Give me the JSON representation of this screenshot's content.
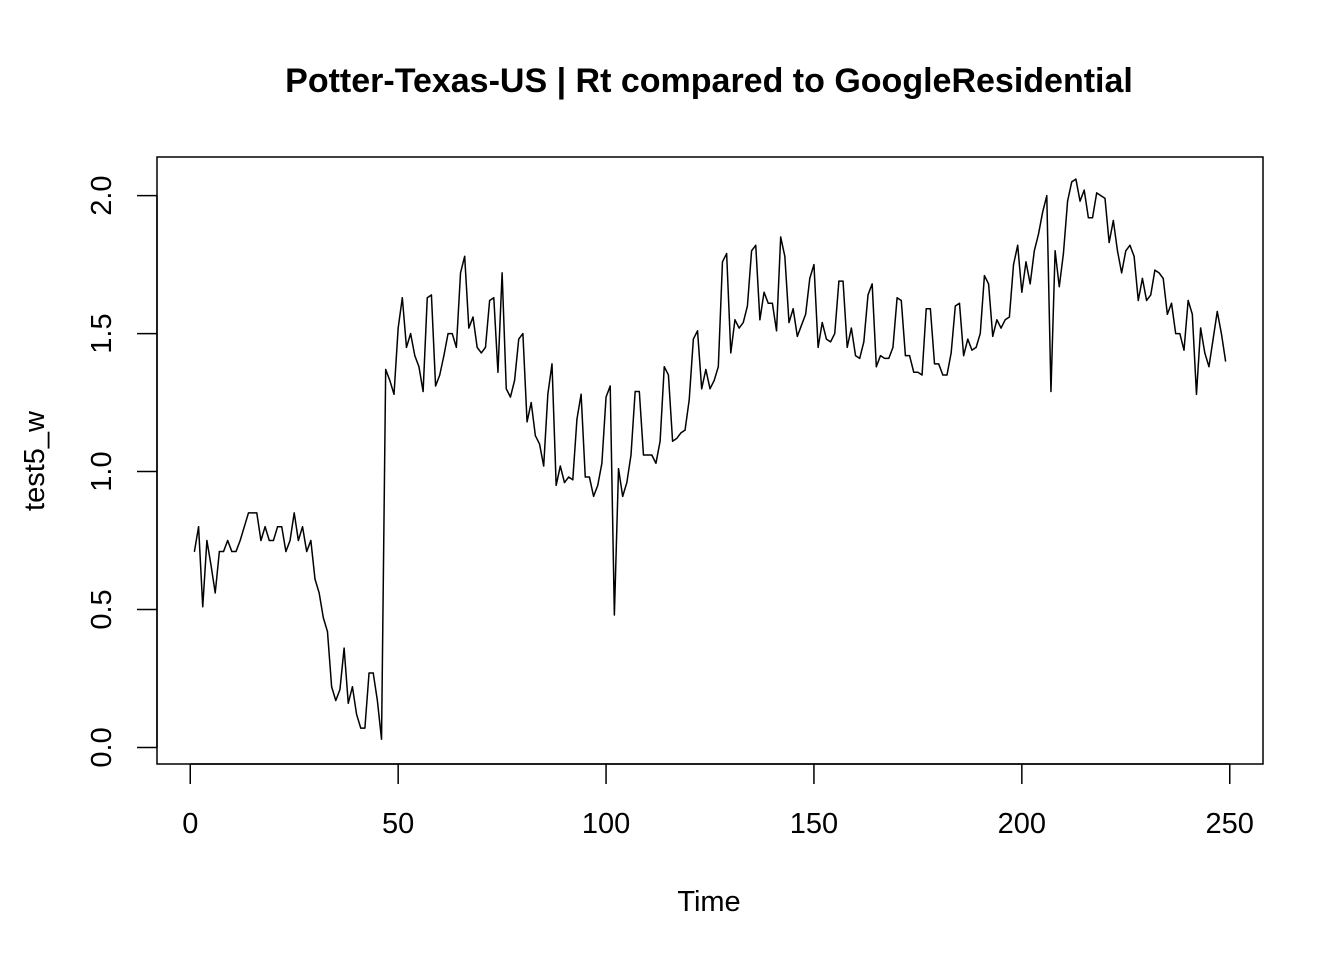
{
  "chart_data": {
    "type": "line",
    "title": "Potter-Texas-US | Rt compared to GoogleResidential",
    "xlabel": "Time",
    "ylabel": "test5_w",
    "xlim": [
      -8,
      258
    ],
    "ylim": [
      -0.06,
      2.14
    ],
    "xticks": [
      0,
      50,
      100,
      150,
      200,
      250
    ],
    "yticks": [
      0.0,
      0.5,
      1.0,
      1.5,
      2.0
    ],
    "xtick_labels": [
      "0",
      "50",
      "100",
      "150",
      "200",
      "250"
    ],
    "ytick_labels": [
      "0.0",
      "0.5",
      "1.0",
      "1.5",
      "2.0"
    ],
    "grid": false,
    "legend": "none",
    "line_color": "#000000",
    "series": [
      {
        "x_start": 1,
        "values": [
          0.71,
          0.8,
          0.51,
          0.75,
          0.66,
          0.56,
          0.71,
          0.71,
          0.75,
          0.71,
          0.71,
          0.75,
          0.8,
          0.85,
          0.85,
          0.85,
          0.75,
          0.8,
          0.75,
          0.75,
          0.8,
          0.8,
          0.71,
          0.75,
          0.85,
          0.75,
          0.8,
          0.71,
          0.75,
          0.61,
          0.56,
          0.47,
          0.42,
          0.22,
          0.17,
          0.21,
          0.36,
          0.16,
          0.22,
          0.12,
          0.07,
          0.07,
          0.27,
          0.27,
          0.17,
          0.03,
          1.37,
          1.33,
          1.28,
          1.52,
          1.63,
          1.45,
          1.5,
          1.42,
          1.38,
          1.29,
          1.63,
          1.64,
          1.31,
          1.35,
          1.42,
          1.5,
          1.5,
          1.45,
          1.72,
          1.78,
          1.52,
          1.56,
          1.45,
          1.43,
          1.45,
          1.62,
          1.63,
          1.36,
          1.72,
          1.3,
          1.27,
          1.33,
          1.48,
          1.5,
          1.18,
          1.25,
          1.13,
          1.1,
          1.02,
          1.28,
          1.39,
          0.95,
          1.02,
          0.96,
          0.98,
          0.97,
          1.19,
          1.28,
          0.98,
          0.98,
          0.91,
          0.95,
          1.03,
          1.27,
          1.31,
          0.48,
          1.01,
          0.91,
          0.96,
          1.06,
          1.29,
          1.29,
          1.06,
          1.06,
          1.06,
          1.03,
          1.11,
          1.38,
          1.35,
          1.11,
          1.12,
          1.14,
          1.15,
          1.26,
          1.48,
          1.51,
          1.3,
          1.37,
          1.3,
          1.33,
          1.38,
          1.76,
          1.79,
          1.43,
          1.55,
          1.52,
          1.54,
          1.6,
          1.8,
          1.82,
          1.55,
          1.65,
          1.61,
          1.61,
          1.51,
          1.85,
          1.78,
          1.54,
          1.59,
          1.49,
          1.53,
          1.57,
          1.7,
          1.75,
          1.45,
          1.54,
          1.48,
          1.47,
          1.5,
          1.69,
          1.69,
          1.45,
          1.52,
          1.42,
          1.41,
          1.47,
          1.64,
          1.68,
          1.38,
          1.42,
          1.41,
          1.41,
          1.45,
          1.63,
          1.62,
          1.42,
          1.42,
          1.36,
          1.36,
          1.35,
          1.59,
          1.59,
          1.39,
          1.39,
          1.35,
          1.35,
          1.43,
          1.6,
          1.61,
          1.42,
          1.48,
          1.44,
          1.45,
          1.5,
          1.71,
          1.68,
          1.49,
          1.55,
          1.52,
          1.55,
          1.56,
          1.75,
          1.82,
          1.65,
          1.76,
          1.68,
          1.8,
          1.86,
          1.94,
          2.0,
          1.29,
          1.8,
          1.67,
          1.79,
          1.98,
          2.05,
          2.06,
          1.98,
          2.02,
          1.92,
          1.92,
          2.01,
          2.0,
          1.99,
          1.83,
          1.91,
          1.8,
          1.72,
          1.8,
          1.82,
          1.78,
          1.62,
          1.7,
          1.62,
          1.64,
          1.73,
          1.72,
          1.7,
          1.57,
          1.61,
          1.5,
          1.5,
          1.44,
          1.62,
          1.57,
          1.28,
          1.52,
          1.43,
          1.38,
          1.48,
          1.58,
          1.5,
          1.4
        ]
      }
    ]
  }
}
